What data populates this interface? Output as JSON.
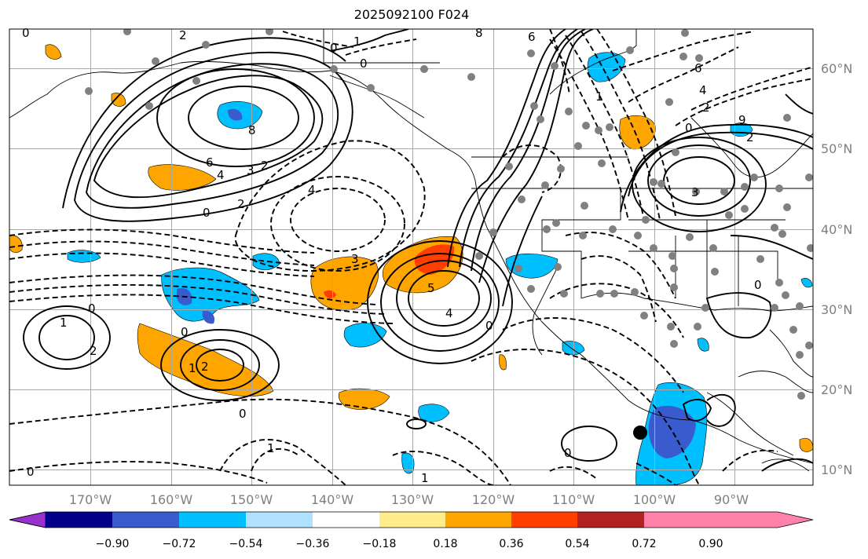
{
  "title": "2025092100 F024",
  "axes": {
    "lon_labels": [
      "170°W",
      "160°W",
      "150°W",
      "140°W",
      "130°W",
      "120°W",
      "110°W",
      "100°W",
      "90°W"
    ],
    "lat_labels": [
      "60°N",
      "50°N",
      "40°N",
      "30°N",
      "20°N",
      "10°N"
    ]
  },
  "colorbar": {
    "colors": [
      "#9932cc",
      "#00008b",
      "#3a5bcd",
      "#00bfff",
      "#b0e2ff",
      "#ffffff",
      "#ffec8b",
      "#ffa500",
      "#ff3e00",
      "#b22222",
      "#ff82ab"
    ],
    "tick_labels": [
      "−0.90",
      "−0.72",
      "−0.54",
      "−0.36",
      "−0.18",
      "0.18",
      "0.36",
      "0.54",
      "0.72",
      "0.90"
    ]
  },
  "contour_labels": [
    "0",
    "1",
    "2",
    "8",
    "6",
    "0",
    "0",
    "1",
    "8",
    "6",
    "6",
    "4",
    "2",
    "0",
    "9",
    "2",
    "3",
    "3",
    "4",
    "2",
    "0",
    "2",
    "4",
    "3",
    "4",
    "5",
    "0",
    "0",
    "2",
    "1",
    "0",
    "1",
    "2",
    "0",
    "0",
    "1",
    "0",
    "1",
    "0"
  ],
  "colors": {
    "fill_orange": "#ffa500",
    "fill_red": "#ff3e00",
    "fill_cyan": "#00bfff",
    "fill_blue": "#3a5bcd",
    "marker_gray": "#808080"
  }
}
